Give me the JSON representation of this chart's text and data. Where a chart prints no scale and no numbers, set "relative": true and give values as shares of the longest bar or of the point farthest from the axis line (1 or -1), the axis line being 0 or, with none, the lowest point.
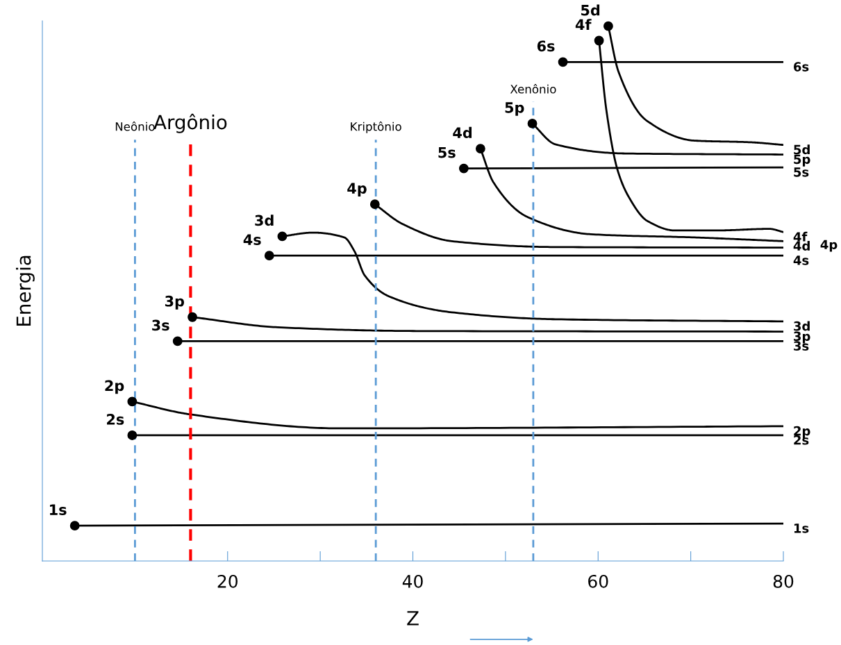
{
  "chart_data": {
    "type": "line",
    "relative": true,
    "xlabel": "Z",
    "ylabel": "Energia",
    "xlim": [
      0,
      80
    ],
    "xticks": [
      20,
      {
        "value": 30,
        "label": null
      },
      40,
      {
        "value": 50,
        "label": null
      },
      60,
      {
        "value": 70,
        "label": null
      },
      80
    ],
    "tick_labels": "x",
    "grid": false,
    "legend": false,
    "line_style": "solid",
    "series": [
      {
        "name": "1s",
        "color": "#000000",
        "x": [
          3.5,
          80
        ],
        "values": [
          0.066,
          0.07
        ]
      },
      {
        "name": "2s",
        "color": "#000000",
        "x": [
          9.7,
          80
        ],
        "values": [
          0.235,
          0.235
        ]
      },
      {
        "name": "2p",
        "color": "#000000",
        "x": [
          9.7,
          16,
          32.2,
          80
        ],
        "values": [
          0.298,
          0.274,
          0.248,
          0.252
        ]
      },
      {
        "name": "3s",
        "color": "#000000",
        "x": [
          14.6,
          80
        ],
        "values": [
          0.411,
          0.411
        ]
      },
      {
        "name": "3p",
        "color": "#000000",
        "x": [
          16.2,
          25.4,
          40.4,
          80
        ],
        "values": [
          0.456,
          0.437,
          0.43,
          0.429
        ]
      },
      {
        "name": "3d",
        "color": "#000000",
        "x": [
          25.9,
          29.2,
          32.6,
          33.7,
          34.8,
          37.4,
          44.2,
          55.4,
          80
        ],
        "values": [
          0.607,
          0.614,
          0.605,
          0.579,
          0.534,
          0.495,
          0.465,
          0.452,
          0.448
        ]
      },
      {
        "name": "4s",
        "color": "#000000",
        "x": [
          24.5,
          80
        ],
        "values": [
          0.571,
          0.571
        ]
      },
      {
        "name": "4p",
        "color": "#000000",
        "x": [
          35.9,
          38.9,
          44.2,
          55.4,
          80
        ],
        "values": [
          0.667,
          0.63,
          0.598,
          0.587,
          0.586
        ]
      },
      {
        "name": "4d",
        "color": "#000000",
        "x": [
          47.3,
          48.7,
          52.4,
          59.2,
          70.4,
          80
        ],
        "values": [
          0.771,
          0.708,
          0.643,
          0.611,
          0.605,
          0.598
        ]
      },
      {
        "name": "4f",
        "color": "#000000",
        "x": [
          60.1,
          60.9,
          62.1,
          63.3,
          65.3,
          68.3,
          72.7,
          78.5,
          80
        ],
        "values": [
          0.973,
          0.842,
          0.731,
          0.681,
          0.636,
          0.618,
          0.618,
          0.621,
          0.615
        ]
      },
      {
        "name": "5s",
        "color": "#000000",
        "x": [
          45.5,
          80
        ],
        "values": [
          0.734,
          0.736
        ]
      },
      {
        "name": "5p",
        "color": "#000000",
        "x": [
          52.9,
          55.4,
          62.9,
          80
        ],
        "values": [
          0.818,
          0.779,
          0.762,
          0.76
        ]
      },
      {
        "name": "5d",
        "color": "#000000",
        "x": [
          61.1,
          62.2,
          65.2,
          70.4,
          76.4,
          80
        ],
        "values": [
          1.0,
          0.915,
          0.824,
          0.786,
          0.783,
          0.778
        ]
      },
      {
        "name": "6s",
        "color": "#000000",
        "x": [
          56.2,
          80
        ],
        "values": [
          0.933,
          0.933
        ]
      }
    ],
    "ref_lines": [
      {
        "axis": "x",
        "value": 10,
        "label": "Neônio",
        "color": "#5b9bd5",
        "line_style": "dashed"
      },
      {
        "axis": "x",
        "value": 16,
        "label": "Argônio",
        "color": "#ff0000",
        "line_style": "dashed"
      },
      {
        "axis": "x",
        "value": 36,
        "label": "Kriptônio",
        "color": "#5b9bd5",
        "line_style": "dashed"
      },
      {
        "axis": "x",
        "value": 53,
        "label": "Xenônio",
        "color": "#5b9bd5",
        "line_style": "dashed"
      }
    ]
  }
}
